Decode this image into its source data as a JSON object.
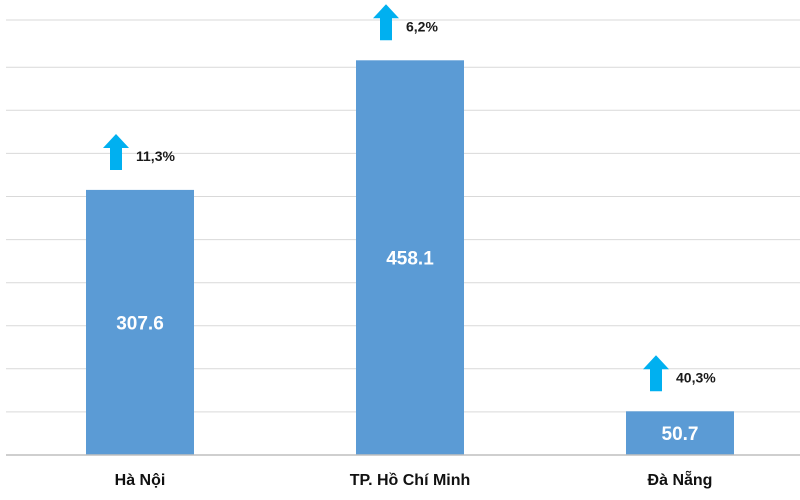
{
  "chart_data": {
    "type": "bar",
    "categories": [
      "Hà Nội",
      "TP. Hồ Chí Minh",
      "Đà Nẵng"
    ],
    "values": [
      307.6,
      458.1,
      50.7
    ],
    "value_labels": [
      "307.6",
      "458.1",
      "50.7"
    ],
    "growth_labels": [
      "11,3%",
      "6,2%",
      "40,3%"
    ],
    "ylim": [
      0,
      500
    ],
    "grid": true,
    "colors": {
      "bar": "#5b9bd5",
      "gridline": "#d9d9d9",
      "arrow": "#00b0f0",
      "axis": "#bfbfbf"
    },
    "growth_icon": "up-arrow-icon"
  }
}
